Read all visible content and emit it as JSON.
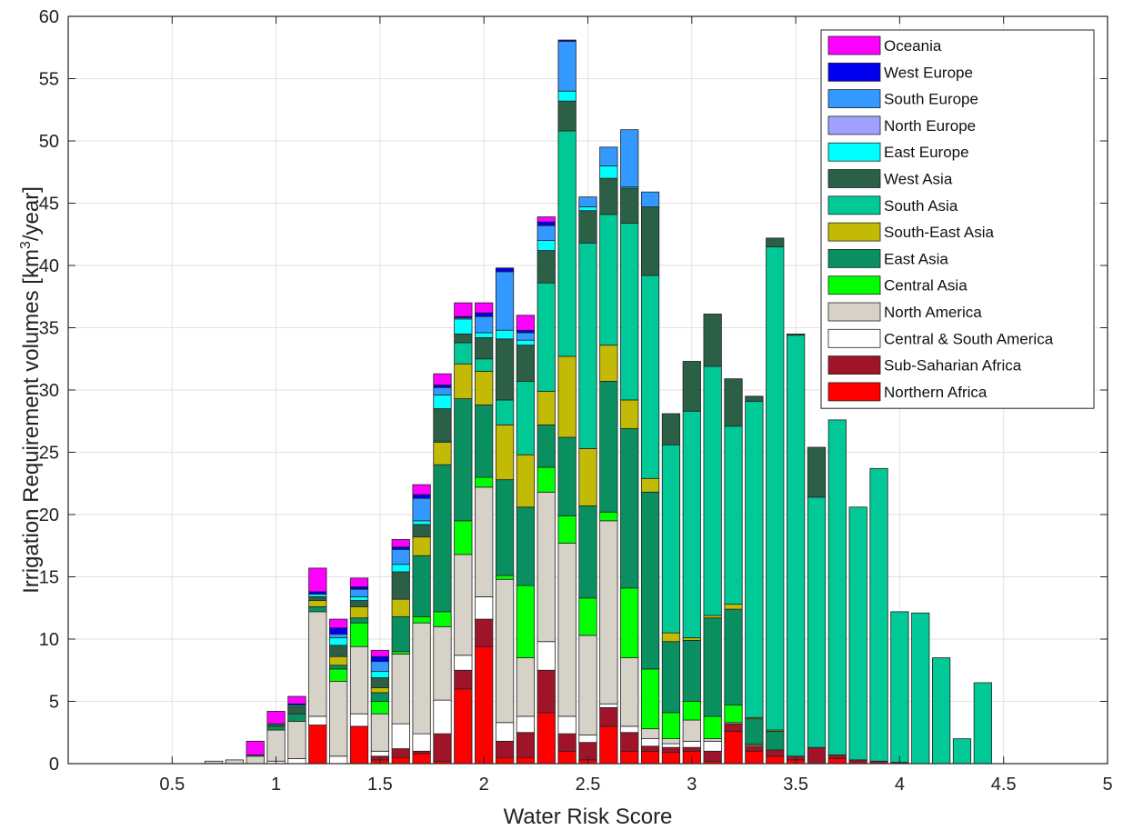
{
  "chart_data": {
    "type": "bar",
    "stacked": true,
    "xlabel": "Water Risk Score",
    "ylabel": "Irrigation Requirement volumes [km³/year]",
    "ylabel_main": "Irrigation Requirement volumes [km",
    "ylabel_sup": "3",
    "ylabel_tail": "/year]",
    "xlim": [
      0,
      5
    ],
    "ylim": [
      0,
      60
    ],
    "grid": true,
    "legend_placement": "top-right",
    "xticks": [
      0.5,
      1,
      1.5,
      2,
      2.5,
      3,
      3.5,
      4,
      4.5,
      5
    ],
    "yticks": [
      0,
      5,
      10,
      15,
      20,
      25,
      30,
      35,
      40,
      45,
      50,
      55,
      60
    ],
    "x": [
      0.1,
      0.2,
      0.3,
      0.4,
      0.5,
      0.6,
      0.7,
      0.8,
      0.9,
      1.0,
      1.1,
      1.2,
      1.3,
      1.4,
      1.5,
      1.6,
      1.7,
      1.8,
      1.9,
      2.0,
      2.1,
      2.2,
      2.3,
      2.4,
      2.5,
      2.6,
      2.7,
      2.8,
      2.9,
      3.0,
      3.1,
      3.2,
      3.3,
      3.4,
      3.5,
      3.6,
      3.7,
      3.8,
      3.9,
      4.0,
      4.1,
      4.2,
      4.3,
      4.4,
      4.5,
      4.6,
      4.7,
      4.8,
      4.9
    ],
    "series": [
      {
        "name": "Northern Africa",
        "color": "#ff0000",
        "values": [
          0,
          0,
          0,
          0,
          0,
          0,
          0,
          0,
          0,
          0,
          0,
          3.1,
          0,
          3.0,
          0.3,
          0.5,
          0.8,
          0.2,
          6.0,
          9.4,
          0.5,
          0.5,
          4.1,
          1.0,
          0.3,
          3.0,
          1.0,
          1.0,
          0.9,
          1.0,
          0.2,
          2.6,
          1.0,
          0.6,
          0.3,
          0,
          0.4,
          0,
          0,
          0,
          0,
          0,
          0,
          0,
          0,
          0,
          0,
          0,
          0
        ]
      },
      {
        "name": "Sub-Saharian Africa",
        "color": "#a0142a",
        "values": [
          0,
          0,
          0,
          0,
          0,
          0,
          0,
          0,
          0,
          0,
          0,
          0,
          0,
          0,
          0.3,
          0.7,
          0.2,
          2.2,
          1.5,
          2.2,
          1.3,
          2.0,
          3.4,
          1.4,
          1.4,
          1.5,
          1.5,
          0.4,
          0.4,
          0.3,
          0.8,
          0.6,
          0.4,
          0.5,
          0.3,
          1.3,
          0.3,
          0.3,
          0.2,
          0.1,
          0,
          0,
          0,
          0,
          0,
          0,
          0,
          0,
          0
        ]
      },
      {
        "name": "Central & South America",
        "color": "#ffffff",
        "values": [
          0,
          0,
          0,
          0,
          0,
          0,
          0,
          0,
          0,
          0.2,
          0.4,
          0.7,
          0.6,
          1.0,
          0.4,
          2.0,
          1.4,
          2.7,
          1.2,
          1.8,
          1.5,
          1.3,
          2.3,
          1.4,
          0.6,
          0.3,
          0.5,
          0.6,
          0.3,
          0.5,
          0.8,
          0.1,
          0.1,
          0,
          0,
          0,
          0,
          0,
          0,
          0,
          0,
          0,
          0,
          0,
          0,
          0,
          0,
          0,
          0
        ]
      },
      {
        "name": "North America",
        "color": "#d6d2c8",
        "values": [
          0,
          0,
          0,
          0,
          0,
          0,
          0.2,
          0.3,
          0.6,
          2.5,
          3.0,
          8.4,
          6.0,
          5.4,
          3.0,
          5.6,
          8.9,
          5.9,
          8.1,
          8.8,
          11.5,
          4.7,
          12.0,
          13.9,
          8.0,
          14.7,
          5.5,
          0.8,
          0.4,
          1.7,
          0.2,
          0,
          0,
          0,
          0,
          0,
          0,
          0,
          0,
          0,
          0,
          0,
          0,
          0,
          0,
          0,
          0,
          0,
          0
        ]
      },
      {
        "name": "Central Asia",
        "color": "#00ff00",
        "values": [
          0,
          0,
          0,
          0,
          0,
          0,
          0,
          0,
          0,
          0,
          0,
          0,
          1.0,
          1.9,
          1.0,
          0.2,
          0.5,
          1.2,
          2.7,
          0.8,
          0.3,
          5.8,
          2.0,
          2.2,
          3.0,
          0.7,
          5.6,
          4.8,
          2.1,
          1.5,
          1.8,
          1.4,
          0.1,
          0,
          0,
          0,
          0,
          0,
          0,
          0,
          0,
          0,
          0,
          0,
          0,
          0,
          0,
          0,
          0
        ]
      },
      {
        "name": "East Asia",
        "color": "#0a9060",
        "values": [
          0,
          0,
          0,
          0,
          0,
          0,
          0,
          0,
          0.1,
          0.3,
          0.6,
          0.4,
          0.3,
          0.4,
          0.7,
          2.8,
          4.9,
          11.8,
          9.8,
          5.8,
          7.7,
          6.3,
          3.4,
          6.3,
          7.4,
          10.5,
          12.8,
          14.2,
          5.7,
          4.9,
          7.9,
          7.7,
          2.0,
          1.5,
          0,
          0,
          0,
          0,
          0,
          0,
          0,
          0,
          0,
          0,
          0,
          0,
          0,
          0,
          0
        ]
      },
      {
        "name": "South-East Asia",
        "color": "#c2ba05",
        "values": [
          0,
          0,
          0,
          0,
          0,
          0,
          0,
          0,
          0,
          0,
          0,
          0.5,
          0.7,
          0.9,
          0.4,
          1.4,
          1.5,
          1.8,
          2.8,
          2.7,
          4.4,
          4.2,
          2.7,
          6.5,
          4.6,
          2.9,
          2.3,
          1.1,
          0.7,
          0.2,
          0.2,
          0.4,
          0.1,
          0.1,
          0,
          0,
          0,
          0,
          0,
          0,
          0,
          0,
          0,
          0,
          0,
          0,
          0,
          0,
          0
        ]
      },
      {
        "name": "South Asia",
        "color": "#00c896",
        "values": [
          0,
          0,
          0,
          0,
          0,
          0,
          0,
          0,
          0,
          0,
          0,
          0,
          0,
          0,
          0,
          0,
          0,
          0.1,
          1.7,
          1.0,
          2.0,
          5.9,
          8.7,
          18.1,
          16.5,
          10.5,
          14.2,
          16.3,
          15.1,
          18.2,
          20.0,
          14.3,
          25.4,
          38.8,
          33.8,
          20.1,
          26.9,
          20.3,
          23.5,
          12.1,
          12.1,
          8.5,
          2.0,
          6.5,
          0,
          0,
          0,
          0,
          0
        ]
      },
      {
        "name": "West Asia",
        "color": "#2b6046",
        "values": [
          0,
          0,
          0,
          0,
          0,
          0,
          0,
          0,
          0,
          0.2,
          0.6,
          0.3,
          0.9,
          0.5,
          0.8,
          2.2,
          1.0,
          2.6,
          0.7,
          1.7,
          4.9,
          2.9,
          2.6,
          2.4,
          2.6,
          2.9,
          2.8,
          5.5,
          2.5,
          4.0,
          4.2,
          3.8,
          0.4,
          0.7,
          0.1,
          4.0,
          0,
          0,
          0,
          0,
          0,
          0,
          0,
          0,
          0,
          0,
          0,
          0,
          0
        ]
      },
      {
        "name": "East Europe",
        "color": "#00ffff",
        "values": [
          0,
          0,
          0,
          0,
          0,
          0,
          0,
          0,
          0,
          0,
          0.1,
          0.2,
          0.6,
          0.3,
          0.5,
          0.6,
          0.3,
          1.1,
          1.2,
          0.4,
          0.7,
          0.4,
          0.8,
          0.8,
          0.3,
          1.0,
          0.1,
          0,
          0,
          0,
          0,
          0,
          0,
          0,
          0,
          0,
          0,
          0,
          0,
          0,
          0,
          0,
          0,
          0,
          0,
          0,
          0,
          0,
          0
        ]
      },
      {
        "name": "North Europe",
        "color": "#a0a0ff",
        "values": [
          0,
          0,
          0,
          0,
          0,
          0,
          0,
          0,
          0,
          0,
          0,
          0,
          0,
          0,
          0,
          0,
          0,
          0,
          0,
          0,
          0,
          0,
          0,
          0,
          0,
          0,
          0,
          0,
          0,
          0,
          0,
          0,
          0,
          0,
          0,
          0,
          0,
          0,
          0,
          0,
          0,
          0,
          0,
          0,
          0,
          0,
          0,
          0,
          0
        ]
      },
      {
        "name": "South Europe",
        "color": "#3399ff",
        "values": [
          0,
          0,
          0,
          0,
          0,
          0,
          0,
          0,
          0,
          0,
          0,
          0,
          0.3,
          0.6,
          0.8,
          1.2,
          1.8,
          0.6,
          0.1,
          1.3,
          4.7,
          0.6,
          1.2,
          4.0,
          0.8,
          1.5,
          4.6,
          1.2,
          0,
          0,
          0,
          0,
          0,
          0,
          0,
          0,
          0,
          0,
          0,
          0,
          0,
          0,
          0,
          0,
          0,
          0,
          0,
          0,
          0
        ]
      },
      {
        "name": "West Europe",
        "color": "#0000ee",
        "values": [
          0,
          0,
          0,
          0,
          0,
          0,
          0,
          0,
          0,
          0,
          0.1,
          0.2,
          0.5,
          0.2,
          0.4,
          0.2,
          0.3,
          0.2,
          0.1,
          0.3,
          0.3,
          0.2,
          0.3,
          0.1,
          0,
          0,
          0,
          0,
          0,
          0,
          0,
          0,
          0,
          0,
          0,
          0,
          0,
          0,
          0,
          0,
          0,
          0,
          0,
          0,
          0,
          0,
          0,
          0,
          0
        ]
      },
      {
        "name": "Oceania",
        "color": "#ff00ff",
        "values": [
          0,
          0,
          0,
          0,
          0,
          0,
          0,
          0,
          1.1,
          1.0,
          0.6,
          1.9,
          0.7,
          0.7,
          0.5,
          0.6,
          0.8,
          0.9,
          1.1,
          0.8,
          0,
          1.2,
          0.4,
          0,
          0,
          0,
          0,
          0,
          0,
          0,
          0,
          0,
          0,
          0,
          0,
          0,
          0,
          0,
          0,
          0,
          0,
          0,
          0,
          0,
          0,
          0,
          0,
          0,
          0
        ]
      }
    ]
  }
}
